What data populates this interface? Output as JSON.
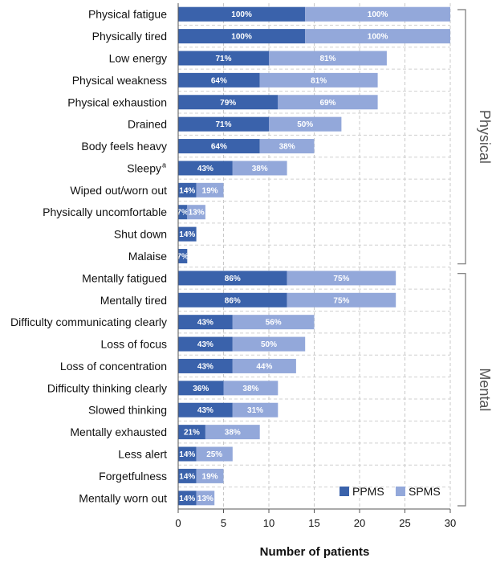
{
  "chart_data": {
    "type": "bar",
    "orientation": "horizontal",
    "stacked": true,
    "xlabel": "Number of patients",
    "xlim": [
      0,
      30
    ],
    "xticks": [
      0,
      5,
      10,
      15,
      20,
      25,
      30
    ],
    "grid": "vertical dashed",
    "legend_position": "bottom-right",
    "categories": [
      "Physical fatigue",
      "Physically tired",
      "Low energy",
      "Physical weakness",
      "Physical exhaustion",
      "Drained",
      "Body feels heavy",
      "Sleepy",
      "Wiped out/worn out",
      "Physically uncomfortable",
      "Shut down",
      "Malaise",
      "Mentally fatigued",
      "Mentally tired",
      "Difficulty communicating clearly",
      "Loss of focus",
      "Loss of concentration",
      "Difficulty thinking clearly",
      "Slowed thinking",
      "Mentally exhausted",
      "Less alert",
      "Forgetfulness",
      "Mentally worn out"
    ],
    "footnote_marks": {
      "Sleepy": "a"
    },
    "series": [
      {
        "name": "PPMS",
        "color": "#3a62ab",
        "values": [
          14,
          14,
          10,
          9,
          11,
          10,
          9,
          6,
          2,
          1,
          2,
          1,
          12,
          12,
          6,
          6,
          6,
          5,
          6,
          3,
          2,
          2,
          2
        ],
        "labels": [
          "100%",
          "100%",
          "71%",
          "64%",
          "79%",
          "71%",
          "64%",
          "43%",
          "14%",
          "7%",
          "14%",
          "7%",
          "86%",
          "86%",
          "43%",
          "43%",
          "43%",
          "36%",
          "43%",
          "21%",
          "14%",
          "14%",
          "14%"
        ]
      },
      {
        "name": "SPMS",
        "color": "#93a8da",
        "values": [
          16,
          16,
          13,
          13,
          11,
          8,
          6,
          6,
          3,
          2,
          0,
          0,
          12,
          12,
          9,
          8,
          7,
          6,
          5,
          6,
          4,
          3,
          2
        ],
        "labels": [
          "100%",
          "100%",
          "81%",
          "81%",
          "69%",
          "50%",
          "38%",
          "38%",
          "19%",
          "13%",
          "",
          "",
          "75%",
          "75%",
          "56%",
          "50%",
          "44%",
          "38%",
          "31%",
          "38%",
          "25%",
          "19%",
          "13%"
        ]
      }
    ],
    "groups": [
      {
        "name": "Physical",
        "from": "Physical fatigue",
        "to": "Malaise"
      },
      {
        "name": "Mental",
        "from": "Mentally fatigued",
        "to": "Mentally worn out"
      }
    ]
  }
}
